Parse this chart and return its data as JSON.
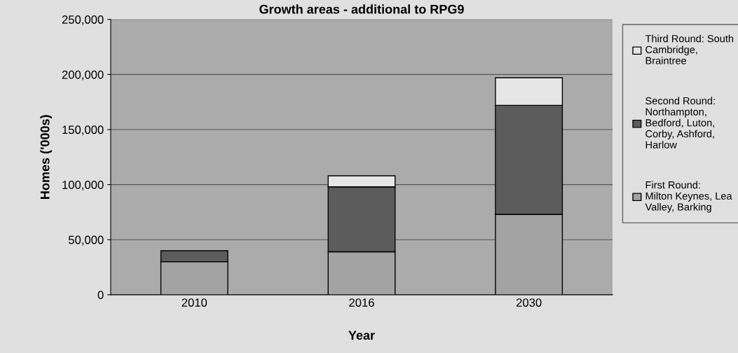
{
  "chart_data": {
    "type": "bar",
    "title": "Growth areas - additional to RPG9",
    "xlabel": "Year",
    "ylabel": "Homes ('000s)",
    "categories": [
      "2010",
      "2016",
      "2030"
    ],
    "stacked": true,
    "series": [
      {
        "name": "First Round: Milton Keynes, Lea Valley, Barking",
        "color": "#a3a3a3",
        "values": [
          30000,
          39000,
          73000
        ]
      },
      {
        "name": "Second Round: Northampton, Bedford, Luton, Corby, Ashford, Harlow",
        "color": "#5c5c5c",
        "values": [
          10000,
          59000,
          99000
        ]
      },
      {
        "name": "Third Round: South Cambridge, Braintree",
        "color": "#e6e6e6",
        "values": [
          null,
          10000,
          25000
        ]
      }
    ],
    "ylim": [
      0,
      250000
    ],
    "yticks": [
      {
        "value": 0,
        "label": "0"
      },
      {
        "value": 50000,
        "label": "50,000"
      },
      {
        "value": 100000,
        "label": "100,000"
      },
      {
        "value": 150000,
        "label": "150,000"
      },
      {
        "value": 200000,
        "label": "200,000"
      },
      {
        "value": 250000,
        "label": "250,000"
      }
    ],
    "grid": "y",
    "legend": "right"
  }
}
